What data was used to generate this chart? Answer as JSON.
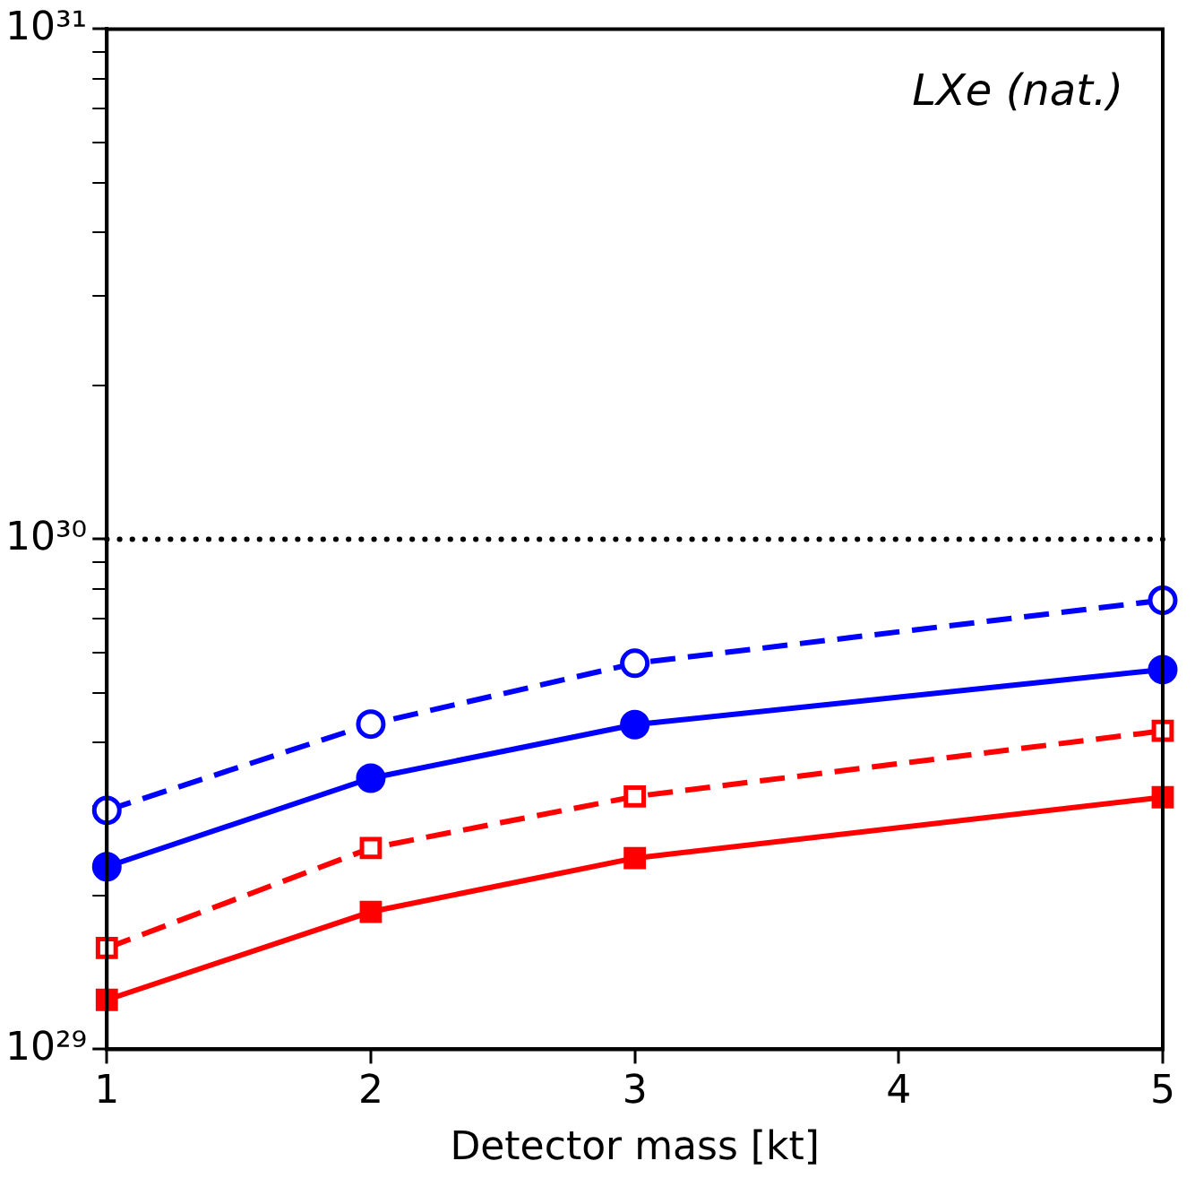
{
  "chart_data": {
    "type": "line",
    "xlabel": "Detector mass [kt]",
    "annotations": [
      "LXe (nat.)"
    ],
    "x": [
      1,
      2,
      3,
      5
    ],
    "series": [
      {
        "color": "#0000ff",
        "marker": "circle",
        "line_style": "dashed",
        "values": [
          2.94e+29,
          4.34e+29,
          5.71e+29,
          7.59e+29
        ]
      },
      {
        "color": "#0000ff",
        "marker": "circle",
        "line_style": "solid",
        "values": [
          2.28e+29,
          3.4e+29,
          4.33e+29,
          5.55e+29
        ]
      },
      {
        "color": "#ff0000",
        "marker": "square",
        "line_style": "dashed",
        "values": [
          1.58e+29,
          2.48e+29,
          3.13e+29,
          4.21e+29
        ]
      },
      {
        "color": "#ff0000",
        "marker": "square",
        "line_style": "solid",
        "values": [
          1.25e+29,
          1.86e+29,
          2.37e+29,
          3.12e+29
        ]
      }
    ],
    "log": "y",
    "xlim": [
      1,
      5
    ],
    "xticks": [
      1,
      2,
      3,
      4,
      5
    ],
    "ylim": [
      1e+29,
      1e+31
    ],
    "yticks": [
      {
        "value": 1e+29,
        "label": "10²⁹"
      },
      {
        "value": 2e+29,
        "label": null
      },
      {
        "value": 3e+29,
        "label": null
      },
      {
        "value": 4e+29,
        "label": null
      },
      {
        "value": 5e+29,
        "label": null
      },
      {
        "value": 6e+29,
        "label": null
      },
      {
        "value": 7e+29,
        "label": null
      },
      {
        "value": 8e+29,
        "label": null
      },
      {
        "value": 9e+29,
        "label": null
      },
      {
        "value": 1e+30,
        "label": "10³⁰"
      },
      {
        "value": 2e+30,
        "label": null
      },
      {
        "value": 3e+30,
        "label": null
      },
      {
        "value": 4e+30,
        "label": null
      },
      {
        "value": 5e+30,
        "label": null
      },
      {
        "value": 6e+30,
        "label": null
      },
      {
        "value": 7e+30,
        "label": null
      },
      {
        "value": 8e+30,
        "label": null
      },
      {
        "value": 9e+30,
        "label": null
      },
      {
        "value": 1e+31,
        "label": "10³¹"
      }
    ],
    "ref_lines": [
      {
        "axis": "y",
        "value": 1e+30,
        "color": "#000000",
        "line_style": "dotted"
      }
    ],
    "grid": false,
    "legend": false
  }
}
